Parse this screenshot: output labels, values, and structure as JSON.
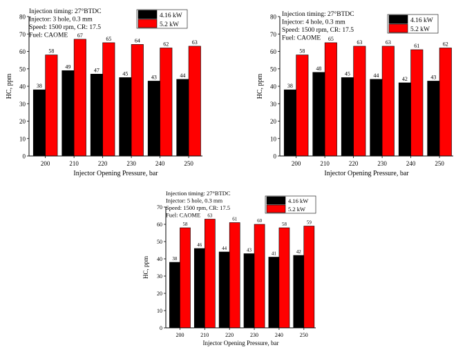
{
  "chart_data": [
    {
      "type": "bar",
      "annotation": [
        "Injection timing: 27°BTDC",
        "Injector: 3 hole, 0.3 mm",
        "Speed: 1500 rpm, CR: 17.5",
        "Fuel: CAOME"
      ],
      "categories": [
        "200",
        "210",
        "220",
        "230",
        "240",
        "250"
      ],
      "series": [
        {
          "name": "4.16 kW",
          "values": [
            38,
            49,
            47,
            45,
            43,
            44
          ],
          "color": "#000000"
        },
        {
          "name": "5.2 kW",
          "values": [
            58,
            67,
            65,
            64,
            62,
            63
          ],
          "color": "#ff0000"
        }
      ],
      "xlabel": "Injector Opening Pressure, bar",
      "ylabel": "HC, ppm",
      "ylim": [
        0,
        80
      ],
      "yticks": [
        0,
        10,
        20,
        30,
        40,
        50,
        60,
        70,
        80
      ],
      "grid": false,
      "legend": "top-right"
    },
    {
      "type": "bar",
      "annotation": [
        "Injection timing: 27°BTDC",
        "Injector: 4 hole, 0.3 mm",
        "Speed: 1500 rpm, CR: 17.5",
        "Fuel: CAOME"
      ],
      "categories": [
        "200",
        "210",
        "220",
        "230",
        "240",
        "250"
      ],
      "series": [
        {
          "name": "4.16 kW",
          "values": [
            38,
            48,
            45,
            44,
            42,
            43
          ],
          "color": "#000000"
        },
        {
          "name": "5.2 kW",
          "values": [
            58,
            65,
            63,
            63,
            61,
            62
          ],
          "color": "#ff0000"
        }
      ],
      "xlabel": "Injector Opening Pressure, bar",
      "ylabel": "HC, ppm",
      "ylim": [
        0,
        80
      ],
      "yticks": [
        0,
        10,
        20,
        30,
        40,
        50,
        60,
        70,
        80
      ],
      "grid": false,
      "legend": "top-right"
    },
    {
      "type": "bar",
      "annotation": [
        "Injection timing: 27°BTDC",
        "Injector: 5 hole, 0.3 mm",
        "Speed: 1500 rpm, CR: 17.5",
        "Fuel: CAOME"
      ],
      "categories": [
        "200",
        "210",
        "220",
        "230",
        "240",
        "250"
      ],
      "series": [
        {
          "name": "4.16 kW",
          "values": [
            38,
            46,
            44,
            43,
            41,
            42
          ],
          "color": "#000000"
        },
        {
          "name": "5.2 kW",
          "values": [
            58,
            63,
            61,
            60,
            58,
            59
          ],
          "color": "#ff0000"
        }
      ],
      "xlabel": "Injector Opening Pressure, bar",
      "ylabel": "HC, ppm",
      "ylim": [
        0,
        70
      ],
      "yticks": [
        0,
        10,
        20,
        30,
        40,
        50,
        60,
        70
      ],
      "grid": false,
      "legend": "top-right"
    }
  ]
}
